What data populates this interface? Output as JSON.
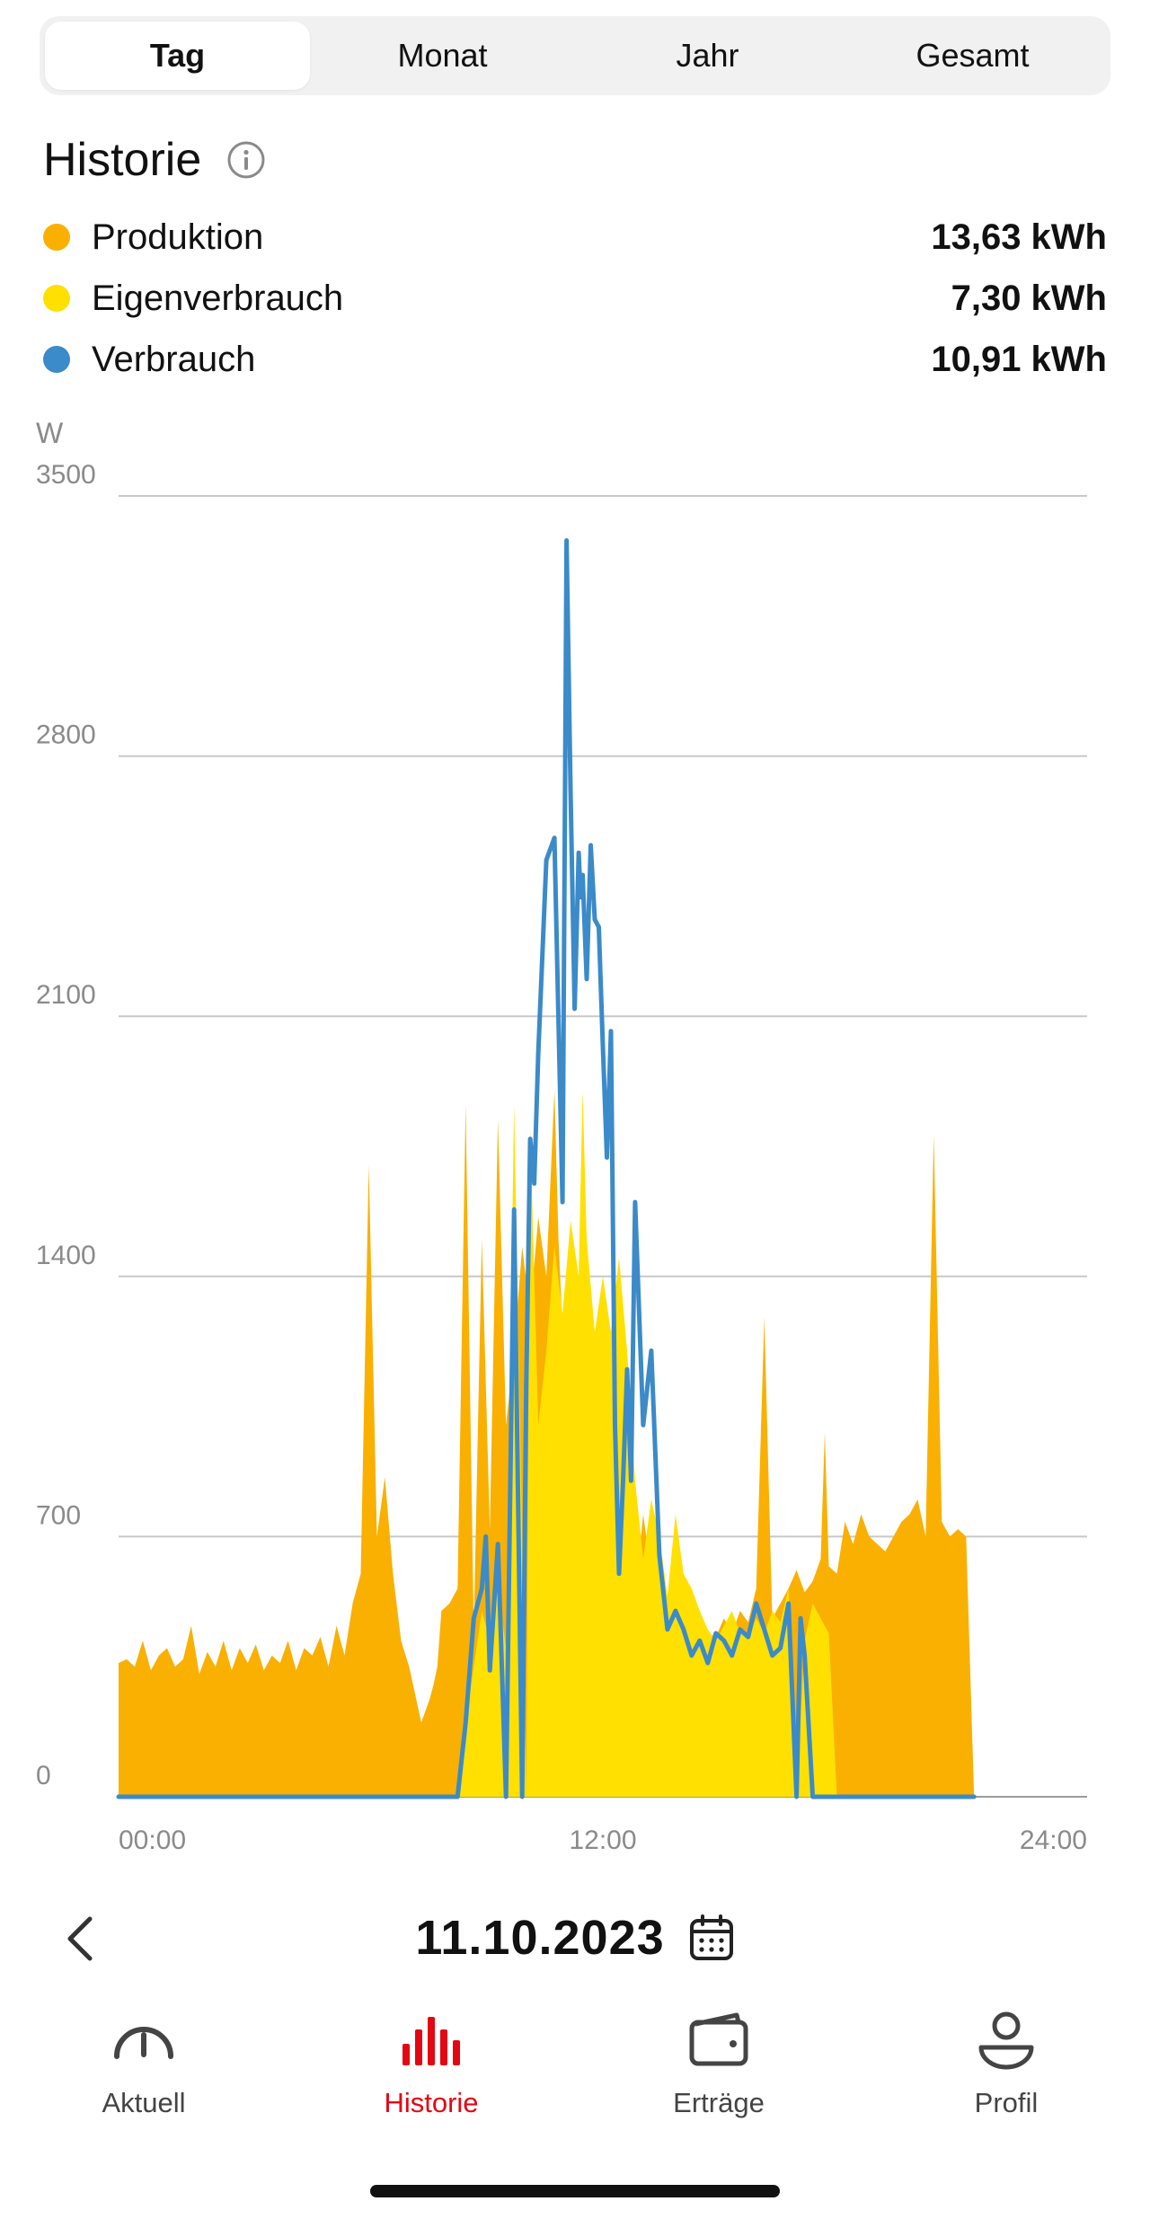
{
  "tabs": [
    {
      "label": "Tag",
      "active": true
    },
    {
      "label": "Monat",
      "active": false
    },
    {
      "label": "Jahr",
      "active": false
    },
    {
      "label": "Gesamt",
      "active": false
    }
  ],
  "section": {
    "title": "Historie"
  },
  "legend": [
    {
      "label": "Produktion",
      "value": "13,63 kWh",
      "color": "#F9B000"
    },
    {
      "label": "Eigenverbrauch",
      "value": "7,30 kWh",
      "color": "#FFE000"
    },
    {
      "label": "Verbrauch",
      "value": "10,91 kWh",
      "color": "#3B8AC9"
    }
  ],
  "chart_data": {
    "type": "area",
    "ylabel": "W",
    "ylim": [
      0,
      3500
    ],
    "yticks": [
      0,
      700,
      1400,
      2100,
      2800,
      3500
    ],
    "xticks": [
      "00:00",
      "12:00",
      "24:00"
    ],
    "xrange_hours": [
      0,
      24
    ],
    "grid": true,
    "series": [
      {
        "name": "Produktion",
        "color": "#F9B000",
        "x": [
          0,
          0.2,
          0.4,
          0.6,
          0.8,
          1.0,
          1.2,
          1.4,
          1.6,
          1.8,
          2.0,
          2.2,
          2.4,
          2.6,
          2.8,
          3.0,
          3.2,
          3.4,
          3.6,
          3.8,
          4.0,
          4.2,
          4.4,
          4.6,
          4.8,
          5.0,
          5.2,
          5.4,
          5.6,
          5.8,
          6.0,
          6.2,
          6.4,
          6.6,
          6.8,
          7.0,
          7.2,
          7.3,
          7.4,
          7.5,
          7.6,
          7.7,
          7.8,
          7.9,
          8.0,
          8.2,
          8.4,
          8.6,
          8.8,
          9.0,
          9.2,
          9.4,
          9.6,
          9.8,
          10.0,
          10.2,
          10.4,
          10.6,
          10.8,
          10.9,
          11.0,
          11.2,
          11.4,
          11.5,
          11.6,
          11.8,
          12.0,
          12.2,
          12.4,
          12.6,
          12.8,
          13.0,
          13.2,
          13.4,
          13.6,
          13.8,
          14.0,
          14.2,
          14.4,
          14.6,
          14.8,
          15.0,
          15.2,
          15.4,
          15.6,
          15.8,
          16.0,
          16.2,
          16.4,
          16.6,
          16.8,
          17.0,
          17.2,
          17.4,
          17.5,
          17.6,
          17.8,
          18.0,
          18.2,
          18.4,
          18.6,
          18.8,
          19.0,
          19.2,
          19.4,
          19.6,
          19.8,
          20.0,
          20.2,
          20.4,
          20.6,
          20.8,
          21.0,
          21.2
        ],
        "values": [
          360,
          370,
          350,
          420,
          340,
          380,
          400,
          350,
          370,
          460,
          330,
          390,
          350,
          420,
          340,
          400,
          360,
          410,
          340,
          380,
          360,
          420,
          340,
          400,
          380,
          430,
          350,
          460,
          380,
          520,
          600,
          1700,
          700,
          860,
          600,
          420,
          350,
          300,
          250,
          200,
          230,
          260,
          300,
          350,
          500,
          520,
          560,
          1860,
          450,
          1500,
          720,
          1820,
          1000,
          1200,
          1480,
          1300,
          1560,
          1400,
          1900,
          1500,
          1260,
          1400,
          1250,
          1500,
          1450,
          1200,
          850,
          650,
          800,
          700,
          540,
          760,
          600,
          560,
          500,
          450,
          420,
          460,
          500,
          440,
          430,
          480,
          440,
          500,
          470,
          560,
          1290,
          480,
          520,
          560,
          610,
          550,
          580,
          640,
          980,
          620,
          600,
          740,
          680,
          760,
          700,
          680,
          660,
          700,
          740,
          760,
          800,
          700,
          1780,
          740,
          700,
          720,
          700,
          0
        ]
      },
      {
        "name": "Eigenverbrauch",
        "color": "#FFE000",
        "x": [
          8.4,
          8.6,
          8.8,
          9.0,
          9.2,
          9.4,
          9.6,
          9.8,
          10.0,
          10.1,
          10.2,
          10.4,
          10.6,
          10.8,
          11.0,
          11.2,
          11.4,
          11.5,
          11.6,
          11.8,
          12.0,
          12.2,
          12.4,
          12.6,
          12.8,
          13.0,
          13.2,
          13.4,
          13.6,
          13.8,
          14.0,
          14.2,
          14.4,
          14.6,
          14.8,
          15.0,
          15.2,
          15.4,
          15.6,
          15.8,
          16.0,
          16.2,
          16.4,
          16.6,
          16.8,
          17.0,
          17.2,
          17.4,
          17.6,
          17.8
        ],
        "values": [
          0,
          200,
          350,
          500,
          420,
          560,
          400,
          1860,
          700,
          0,
          1800,
          1000,
          1200,
          1480,
          1300,
          1550,
          1400,
          1900,
          1500,
          1250,
          1400,
          1250,
          1450,
          1200,
          850,
          640,
          800,
          700,
          540,
          760,
          600,
          560,
          500,
          450,
          420,
          460,
          500,
          440,
          430,
          480,
          440,
          500,
          470,
          560,
          0,
          420,
          520,
          480,
          440,
          0
        ]
      },
      {
        "name": "Verbrauch",
        "color": "#3B8AC9",
        "x": [
          0,
          8.4,
          8.6,
          8.8,
          9.0,
          9.1,
          9.2,
          9.4,
          9.6,
          9.8,
          10.0,
          10.1,
          10.2,
          10.3,
          10.4,
          10.6,
          10.8,
          11.0,
          11.1,
          11.2,
          11.3,
          11.4,
          11.45,
          11.5,
          11.6,
          11.7,
          11.8,
          11.9,
          12.0,
          12.1,
          12.2,
          12.3,
          12.4,
          12.5,
          12.6,
          12.7,
          12.8,
          13.0,
          13.2,
          13.4,
          13.6,
          13.8,
          14.0,
          14.2,
          14.4,
          14.6,
          14.8,
          15.0,
          15.2,
          15.4,
          15.6,
          15.8,
          16.0,
          16.2,
          16.4,
          16.6,
          16.8,
          16.9,
          17.0,
          17.2,
          17.4,
          17.6,
          17.8,
          18.0,
          21.2
        ],
        "values": [
          0,
          0,
          200,
          480,
          560,
          700,
          340,
          680,
          0,
          1580,
          0,
          1100,
          1770,
          1650,
          2000,
          2520,
          2580,
          1600,
          3380,
          2700,
          2120,
          2540,
          2420,
          2480,
          2200,
          2560,
          2360,
          2340,
          2020,
          1720,
          2060,
          1000,
          600,
          850,
          1150,
          850,
          1600,
          1000,
          1200,
          650,
          450,
          500,
          450,
          380,
          420,
          360,
          440,
          420,
          380,
          450,
          430,
          520,
          450,
          380,
          400,
          520,
          0,
          480,
          380,
          0,
          0,
          0,
          0,
          0,
          0
        ]
      }
    ]
  },
  "date_bar": {
    "date": "11.10.2023"
  },
  "nav": [
    {
      "label": "Aktuell",
      "icon": "gauge-icon",
      "active": false
    },
    {
      "label": "Historie",
      "icon": "bar-chart-icon",
      "active": true
    },
    {
      "label": "Erträge",
      "icon": "wallet-icon",
      "active": false
    },
    {
      "label": "Profil",
      "icon": "profile-icon",
      "active": false
    }
  ]
}
